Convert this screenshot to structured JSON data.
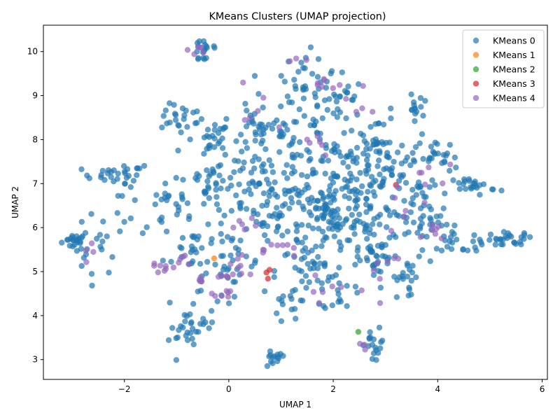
{
  "chart_data": {
    "type": "scatter",
    "title": "KMeans Clusters (UMAP projection)",
    "xlabel": "UMAP 1",
    "ylabel": "UMAP 2",
    "xlim": [
      -3.55,
      6.1
    ],
    "ylim": [
      2.55,
      10.6
    ],
    "xticks": [
      -2,
      0,
      2,
      4,
      6
    ],
    "yticks": [
      3,
      4,
      5,
      6,
      7,
      8,
      9,
      10
    ],
    "grid": false,
    "legend_position": "top-right",
    "series": [
      {
        "name": "KMeans 0",
        "color": "#1f77b4",
        "clusters": [
          {
            "x": -2.95,
            "y": 5.7,
            "sx": 0.12,
            "sy": 0.08,
            "n": 18
          },
          {
            "x": -2.55,
            "y": 5.6,
            "sx": 0.22,
            "sy": 0.35,
            "n": 22
          },
          {
            "x": -2.2,
            "y": 7.2,
            "sx": 0.3,
            "sy": 0.1,
            "n": 25
          },
          {
            "x": -1.85,
            "y": 6.4,
            "sx": 0.25,
            "sy": 0.4,
            "n": 15
          },
          {
            "x": -1.2,
            "y": 6.5,
            "sx": 0.2,
            "sy": 0.3,
            "n": 14
          },
          {
            "x": -0.9,
            "y": 8.5,
            "sx": 0.2,
            "sy": 0.15,
            "n": 20
          },
          {
            "x": -0.5,
            "y": 8.1,
            "sx": 0.3,
            "sy": 0.25,
            "n": 25
          },
          {
            "x": -0.45,
            "y": 10.05,
            "sx": 0.15,
            "sy": 0.18,
            "n": 18
          },
          {
            "x": -0.4,
            "y": 7.0,
            "sx": 0.35,
            "sy": 0.35,
            "n": 45
          },
          {
            "x": -0.65,
            "y": 5.5,
            "sx": 0.3,
            "sy": 0.35,
            "n": 30
          },
          {
            "x": -0.55,
            "y": 4.2,
            "sx": 0.2,
            "sy": 0.4,
            "n": 22
          },
          {
            "x": -0.85,
            "y": 3.5,
            "sx": 0.15,
            "sy": 0.15,
            "n": 15
          },
          {
            "x": 0.1,
            "y": 5.2,
            "sx": 0.25,
            "sy": 0.35,
            "n": 25
          },
          {
            "x": 0.4,
            "y": 7.0,
            "sx": 0.4,
            "sy": 0.5,
            "n": 55
          },
          {
            "x": 0.65,
            "y": 8.3,
            "sx": 0.35,
            "sy": 0.35,
            "n": 40
          },
          {
            "x": 0.85,
            "y": 3.0,
            "sx": 0.12,
            "sy": 0.1,
            "n": 14
          },
          {
            "x": 1.0,
            "y": 6.2,
            "sx": 0.35,
            "sy": 0.5,
            "n": 50
          },
          {
            "x": 1.2,
            "y": 4.3,
            "sx": 0.18,
            "sy": 0.25,
            "n": 16
          },
          {
            "x": 1.45,
            "y": 9.5,
            "sx": 0.2,
            "sy": 0.25,
            "n": 22
          },
          {
            "x": 1.5,
            "y": 7.5,
            "sx": 0.4,
            "sy": 0.6,
            "n": 70
          },
          {
            "x": 1.6,
            "y": 5.0,
            "sx": 0.35,
            "sy": 0.35,
            "n": 40
          },
          {
            "x": 1.9,
            "y": 6.3,
            "sx": 0.35,
            "sy": 0.4,
            "n": 65
          },
          {
            "x": 2.0,
            "y": 8.9,
            "sx": 0.3,
            "sy": 0.35,
            "n": 35
          },
          {
            "x": 2.1,
            "y": 4.5,
            "sx": 0.15,
            "sy": 0.2,
            "n": 12
          },
          {
            "x": 2.3,
            "y": 7.2,
            "sx": 0.35,
            "sy": 0.4,
            "n": 65
          },
          {
            "x": 2.5,
            "y": 6.0,
            "sx": 0.3,
            "sy": 0.35,
            "n": 45
          },
          {
            "x": 2.75,
            "y": 8.0,
            "sx": 0.25,
            "sy": 0.35,
            "n": 30
          },
          {
            "x": 2.8,
            "y": 3.3,
            "sx": 0.1,
            "sy": 0.2,
            "n": 18
          },
          {
            "x": 2.9,
            "y": 5.2,
            "sx": 0.3,
            "sy": 0.35,
            "n": 35
          },
          {
            "x": 3.2,
            "y": 7.3,
            "sx": 0.3,
            "sy": 0.4,
            "n": 45
          },
          {
            "x": 3.4,
            "y": 4.8,
            "sx": 0.12,
            "sy": 0.2,
            "n": 15
          },
          {
            "x": 3.55,
            "y": 8.7,
            "sx": 0.08,
            "sy": 0.15,
            "n": 14
          },
          {
            "x": 3.6,
            "y": 6.3,
            "sx": 0.3,
            "sy": 0.4,
            "n": 40
          },
          {
            "x": 4.0,
            "y": 7.6,
            "sx": 0.2,
            "sy": 0.2,
            "n": 25
          },
          {
            "x": 4.2,
            "y": 5.8,
            "sx": 0.25,
            "sy": 0.2,
            "n": 20
          },
          {
            "x": 4.7,
            "y": 6.95,
            "sx": 0.2,
            "sy": 0.1,
            "n": 25
          },
          {
            "x": 4.8,
            "y": 5.65,
            "sx": 0.25,
            "sy": 0.08,
            "n": 15
          },
          {
            "x": 5.4,
            "y": 5.75,
            "sx": 0.22,
            "sy": 0.08,
            "n": 22
          }
        ]
      },
      {
        "name": "KMeans 1",
        "color": "#ff7f0e",
        "points": [
          {
            "x": -0.28,
            "y": 5.3
          }
        ]
      },
      {
        "name": "KMeans 2",
        "color": "#2ca02c",
        "points": [
          {
            "x": 2.48,
            "y": 3.63
          }
        ]
      },
      {
        "name": "KMeans 3",
        "color": "#d62728",
        "points": [
          {
            "x": 0.72,
            "y": 4.98
          },
          {
            "x": 0.78,
            "y": 5.04
          },
          {
            "x": 0.75,
            "y": 4.84
          },
          {
            "x": 3.2,
            "y": 6.97
          }
        ]
      },
      {
        "name": "KMeans 4",
        "color": "#9467bd",
        "clusters": [
          {
            "x": -2.6,
            "y": 5.45,
            "sx": 0.1,
            "sy": 0.08,
            "n": 4
          },
          {
            "x": -1.3,
            "y": 5.1,
            "sx": 0.12,
            "sy": 0.1,
            "n": 8
          },
          {
            "x": -0.9,
            "y": 5.2,
            "sx": 0.1,
            "sy": 0.15,
            "n": 5
          },
          {
            "x": -0.55,
            "y": 10.05,
            "sx": 0.1,
            "sy": 0.05,
            "n": 6
          },
          {
            "x": -0.5,
            "y": 4.8,
            "sx": 0.08,
            "sy": 0.05,
            "n": 6
          },
          {
            "x": -0.2,
            "y": 4.4,
            "sx": 0.1,
            "sy": 0.12,
            "n": 5
          },
          {
            "x": 0.0,
            "y": 5.0,
            "sx": 0.15,
            "sy": 0.2,
            "n": 14
          },
          {
            "x": 0.3,
            "y": 6.1,
            "sx": 0.2,
            "sy": 0.1,
            "n": 6
          },
          {
            "x": 0.75,
            "y": 5.5,
            "sx": 0.25,
            "sy": 0.1,
            "n": 10
          },
          {
            "x": 0.6,
            "y": 8.4,
            "sx": 0.3,
            "sy": 0.4,
            "n": 6
          },
          {
            "x": 1.35,
            "y": 9.8,
            "sx": 0.1,
            "sy": 0.05,
            "n": 3
          },
          {
            "x": 1.85,
            "y": 9.3,
            "sx": 0.1,
            "sy": 0.08,
            "n": 7
          },
          {
            "x": 1.7,
            "y": 7.8,
            "sx": 0.2,
            "sy": 0.2,
            "n": 6
          },
          {
            "x": 1.8,
            "y": 4.6,
            "sx": 0.2,
            "sy": 0.3,
            "n": 6
          },
          {
            "x": 2.4,
            "y": 8.7,
            "sx": 0.15,
            "sy": 0.2,
            "n": 5
          },
          {
            "x": 2.6,
            "y": 3.3,
            "sx": 0.08,
            "sy": 0.08,
            "n": 3
          },
          {
            "x": 2.9,
            "y": 5.0,
            "sx": 0.3,
            "sy": 0.3,
            "n": 8
          },
          {
            "x": 3.4,
            "y": 6.4,
            "sx": 0.3,
            "sy": 0.5,
            "n": 8
          },
          {
            "x": 3.9,
            "y": 7.3,
            "sx": 0.25,
            "sy": 0.4,
            "n": 6
          },
          {
            "x": 4.0,
            "y": 6.0,
            "sx": 0.2,
            "sy": 0.1,
            "n": 5
          }
        ]
      }
    ]
  }
}
